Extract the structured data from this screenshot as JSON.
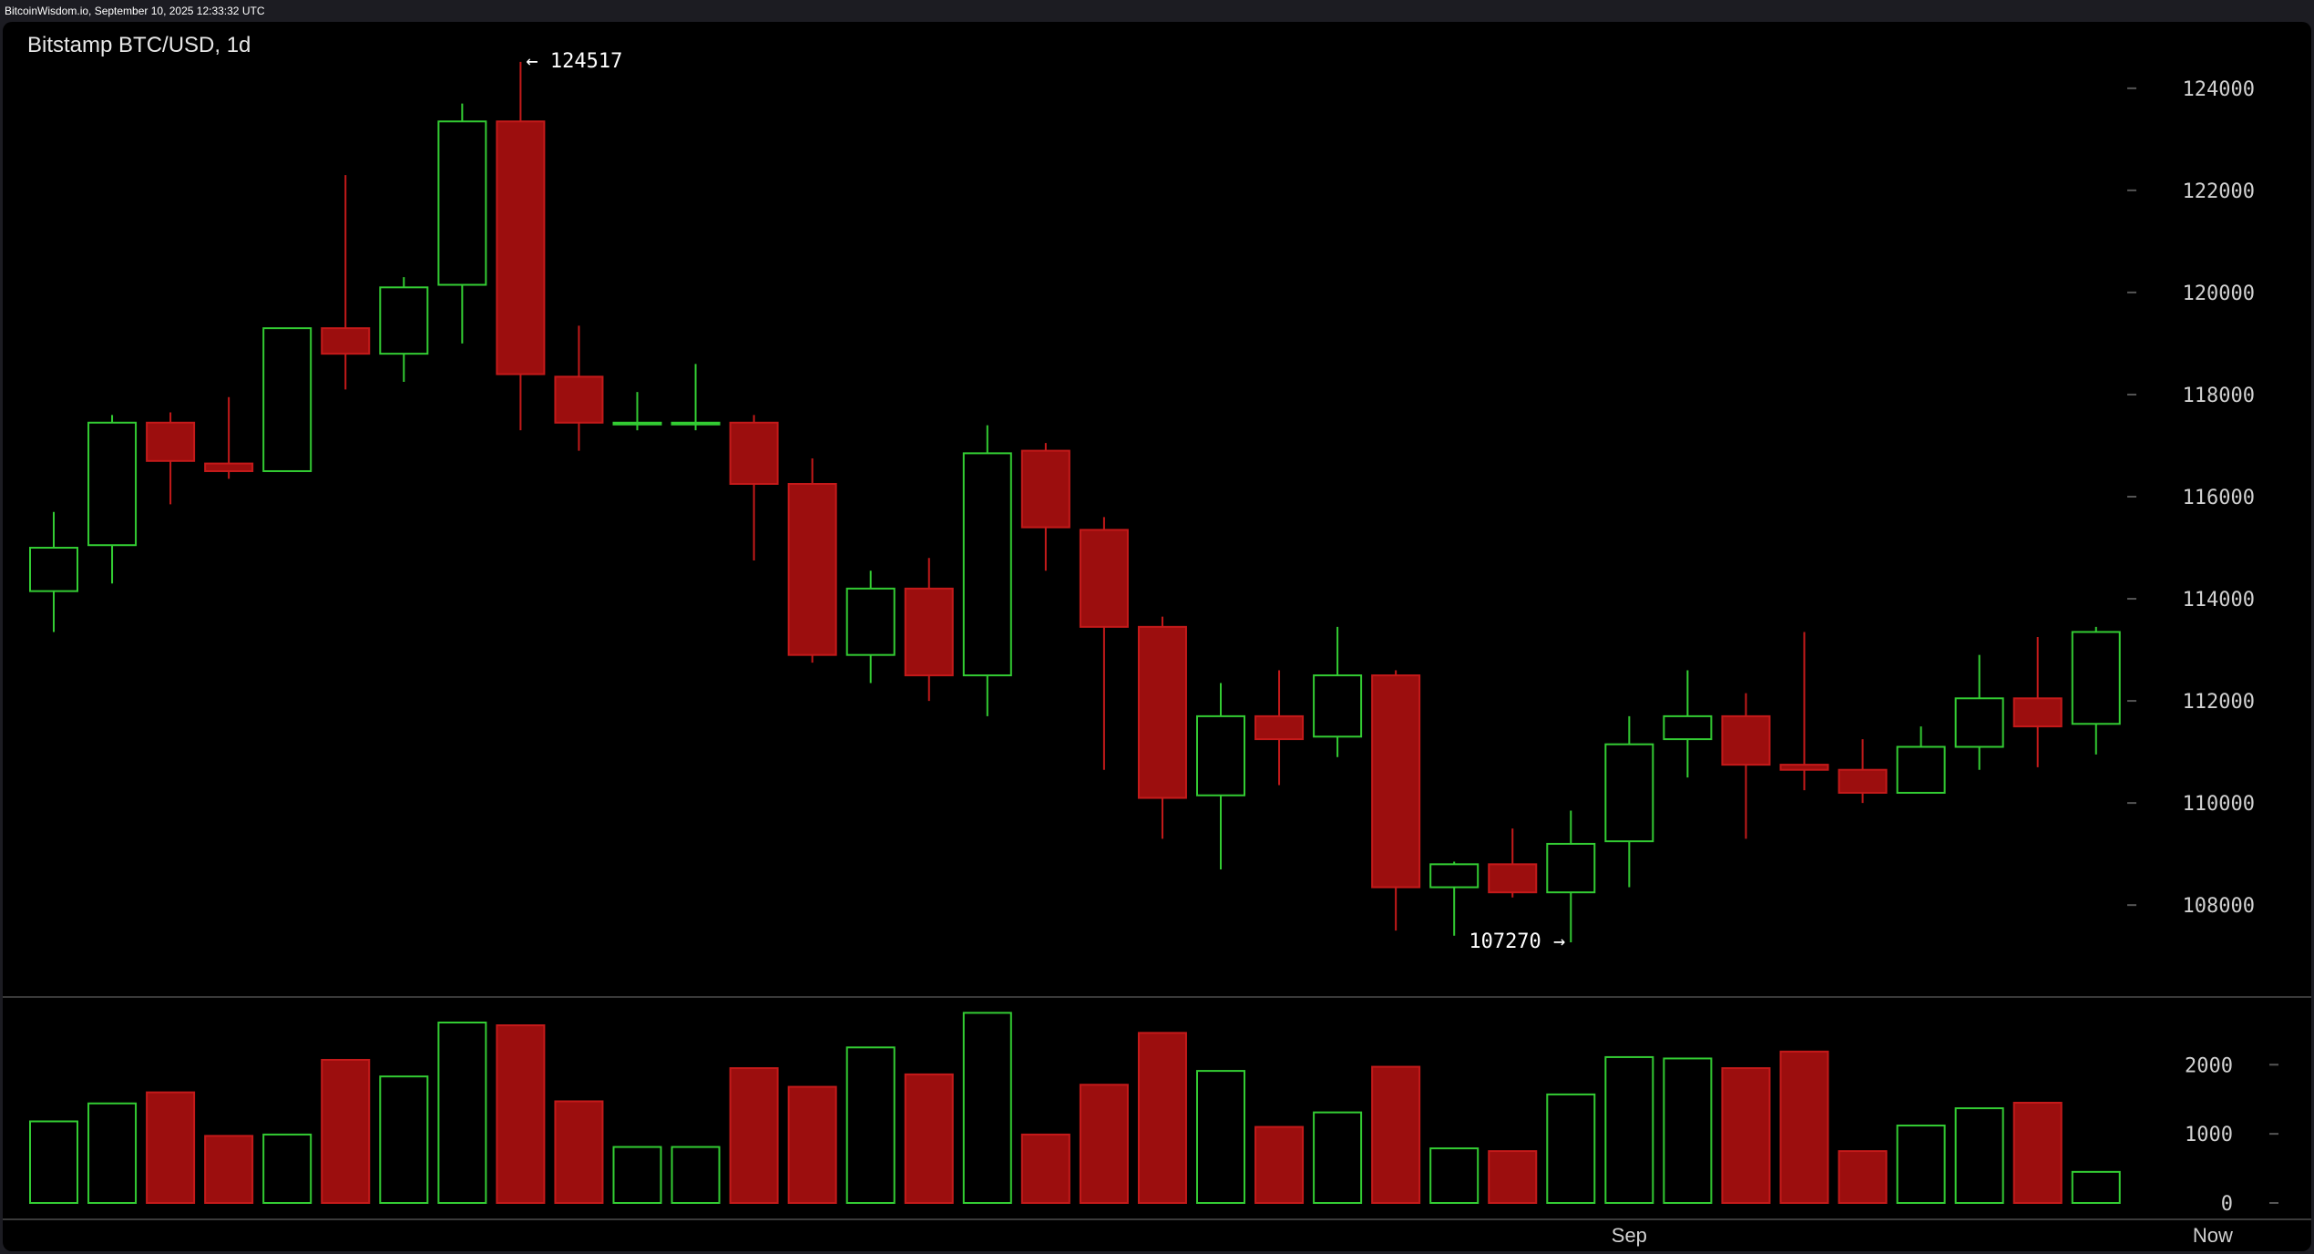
{
  "window": {
    "header": "BitcoinWisdom.io, September 10, 2025 12:33:32 UTC"
  },
  "chart_title": "Bitstamp BTC/USD, 1d",
  "colors": {
    "up": "#33cc33",
    "down": "#9c0e0e",
    "down_outline": "#c41a1a",
    "background": "#000000",
    "page": "#1c1c22"
  },
  "chart_data": [
    {
      "type": "candlestick",
      "title": "Bitstamp BTC/USD, 1d",
      "ylim": [
        106200,
        125300
      ],
      "y_ticks": [
        108000,
        110000,
        112000,
        114000,
        116000,
        118000,
        120000,
        122000,
        124000
      ],
      "x_labels": [
        {
          "index": 27,
          "text": "Sep"
        },
        {
          "index": 37,
          "text": "Now"
        }
      ],
      "annotations": [
        {
          "index": 8,
          "text": "← 124517",
          "price": 124517,
          "side": "right"
        },
        {
          "index": 26,
          "text": "107270 →",
          "price": 107270,
          "side": "left"
        }
      ],
      "grid": false,
      "candles": [
        {
          "o": 114150,
          "h": 115700,
          "l": 113350,
          "c": 115000
        },
        {
          "o": 115050,
          "h": 117600,
          "l": 114300,
          "c": 117450
        },
        {
          "o": 117450,
          "h": 117650,
          "l": 115850,
          "c": 116700
        },
        {
          "o": 116650,
          "h": 117950,
          "l": 116350,
          "c": 116500
        },
        {
          "o": 116500,
          "h": 119300,
          "l": 116500,
          "c": 119300
        },
        {
          "o": 119300,
          "h": 122300,
          "l": 118100,
          "c": 118800
        },
        {
          "o": 118800,
          "h": 120300,
          "l": 118250,
          "c": 120100
        },
        {
          "o": 120150,
          "h": 123700,
          "l": 119000,
          "c": 123350
        },
        {
          "o": 123350,
          "h": 124517,
          "l": 117300,
          "c": 118400
        },
        {
          "o": 118350,
          "h": 119350,
          "l": 116900,
          "c": 117450
        },
        {
          "o": 117450,
          "h": 118050,
          "l": 117300,
          "c": 117450
        },
        {
          "o": 117450,
          "h": 118600,
          "l": 117300,
          "c": 117450
        },
        {
          "o": 117450,
          "h": 117600,
          "l": 114750,
          "c": 116250
        },
        {
          "o": 116250,
          "h": 116750,
          "l": 112750,
          "c": 112900
        },
        {
          "o": 112900,
          "h": 114550,
          "l": 112350,
          "c": 114200
        },
        {
          "o": 114200,
          "h": 114800,
          "l": 112000,
          "c": 112500
        },
        {
          "o": 112500,
          "h": 117400,
          "l": 111700,
          "c": 116850
        },
        {
          "o": 116900,
          "h": 117050,
          "l": 114550,
          "c": 115400
        },
        {
          "o": 115350,
          "h": 115600,
          "l": 110650,
          "c": 113450
        },
        {
          "o": 113450,
          "h": 113650,
          "l": 109300,
          "c": 110100
        },
        {
          "o": 110150,
          "h": 112350,
          "l": 108700,
          "c": 111700
        },
        {
          "o": 111700,
          "h": 112600,
          "l": 110350,
          "c": 111250
        },
        {
          "o": 111300,
          "h": 113450,
          "l": 110900,
          "c": 112500
        },
        {
          "o": 112500,
          "h": 112600,
          "l": 107500,
          "c": 108350
        },
        {
          "o": 108350,
          "h": 108850,
          "l": 107400,
          "c": 108800
        },
        {
          "o": 108800,
          "h": 109500,
          "l": 108150,
          "c": 108250
        },
        {
          "o": 108250,
          "h": 109850,
          "l": 107270,
          "c": 109200
        },
        {
          "o": 109250,
          "h": 111700,
          "l": 108350,
          "c": 111150
        },
        {
          "o": 111250,
          "h": 112600,
          "l": 110500,
          "c": 111700
        },
        {
          "o": 111700,
          "h": 112150,
          "l": 109300,
          "c": 110750
        },
        {
          "o": 110750,
          "h": 113350,
          "l": 110250,
          "c": 110650
        },
        {
          "o": 110650,
          "h": 111250,
          "l": 110000,
          "c": 110200
        },
        {
          "o": 110200,
          "h": 111500,
          "l": 110200,
          "c": 111100
        },
        {
          "o": 111100,
          "h": 112900,
          "l": 110650,
          "c": 112050
        },
        {
          "o": 112050,
          "h": 113250,
          "l": 110700,
          "c": 111500
        },
        {
          "o": 111550,
          "h": 113450,
          "l": 110950,
          "c": 113350
        }
      ]
    },
    {
      "type": "bar",
      "title": "",
      "ylim": [
        0,
        2900
      ],
      "y_ticks": [
        0,
        1000,
        2000
      ],
      "values": [
        1180,
        1440,
        1600,
        970,
        990,
        2070,
        1830,
        2610,
        2570,
        1470,
        810,
        810,
        1950,
        1680,
        2250,
        1860,
        2750,
        990,
        1710,
        2460,
        1910,
        1100,
        1310,
        1970,
        790,
        750,
        1570,
        2110,
        2090,
        1950,
        2190,
        750,
        1120,
        1370,
        1450,
        450
      ],
      "directions": [
        "up",
        "up",
        "down",
        "down",
        "up",
        "down",
        "up",
        "up",
        "down",
        "down",
        "up",
        "up",
        "down",
        "down",
        "up",
        "down",
        "up",
        "down",
        "down",
        "down",
        "up",
        "down",
        "up",
        "down",
        "up",
        "down",
        "up",
        "up",
        "up",
        "down",
        "down",
        "down",
        "up",
        "up",
        "down",
        "up"
      ]
    }
  ]
}
